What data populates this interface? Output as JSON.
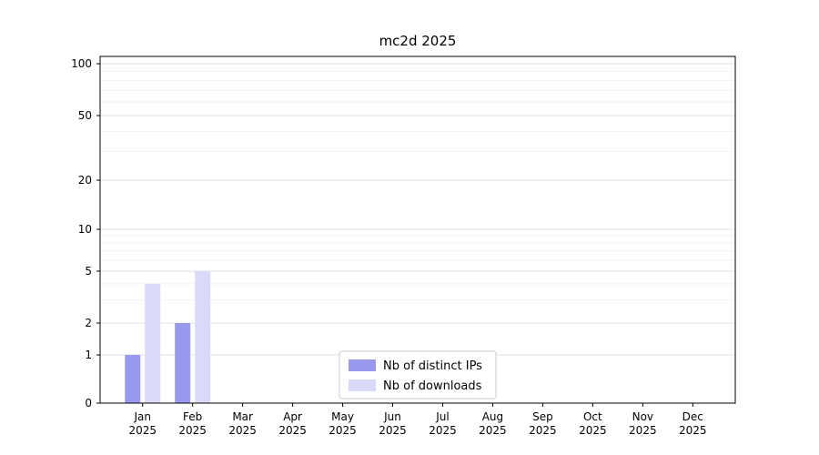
{
  "chart_data": {
    "type": "bar",
    "title": "mc2d 2025",
    "categories": [
      "Jan",
      "Feb",
      "Mar",
      "Apr",
      "May",
      "Jun",
      "Jul",
      "Aug",
      "Sep",
      "Oct",
      "Nov",
      "Dec"
    ],
    "year_label": "2025",
    "series": [
      {
        "name": "Nb of distinct IPs",
        "color": "#9999ee",
        "values": [
          1,
          2,
          0,
          0,
          0,
          0,
          0,
          0,
          0,
          0,
          0,
          0
        ]
      },
      {
        "name": "Nb of downloads",
        "color": "#d9d9f8",
        "values": [
          4,
          5,
          0,
          0,
          0,
          0,
          0,
          0,
          0,
          0,
          0,
          0
        ]
      }
    ],
    "y_ticks": [
      0,
      1,
      2,
      5,
      10,
      20,
      50,
      100
    ],
    "y_minor_ticks": [
      3,
      4,
      6,
      7,
      8,
      9,
      30,
      40,
      60,
      70,
      80,
      90
    ],
    "y_scale": "log-like",
    "ylim": [
      0,
      100
    ],
    "grid": true,
    "legend_position": "bottom-center"
  }
}
